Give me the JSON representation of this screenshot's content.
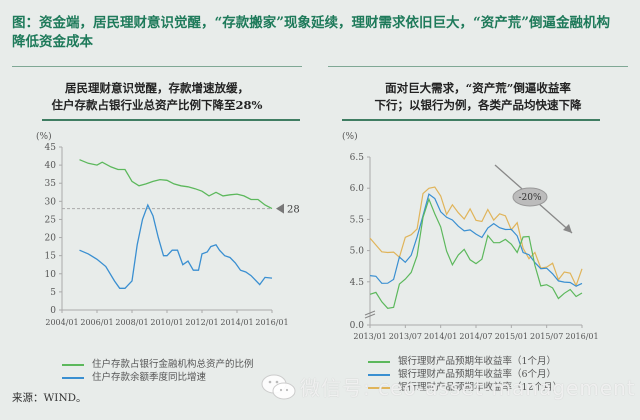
{
  "figure_title": "图：资金端，居民理财意识觉醒，“存款搬家”现象延续，理财需求依旧巨大，“资产荒”倒逼金融机构降低资金成本",
  "source": "来源：WIND。",
  "watermark": "微信号: ceo-asset-management",
  "colors": {
    "title": "#1e7a5a",
    "rule": "#3f7d62",
    "green": "#5cb85c",
    "blue": "#3a8fd1",
    "gold": "#e0b45a",
    "grey": "#888888"
  },
  "chart_data": [
    {
      "type": "line",
      "panel_title_line1": "居民理财意识觉醒，存款增速放缓，",
      "panel_title_line2": "住户存款占银行业总资产比例下降至28%",
      "ylabel": "(%)",
      "ylim": [
        0,
        45
      ],
      "yticks": [
        0,
        5,
        10,
        15,
        20,
        25,
        30,
        35,
        40,
        45
      ],
      "xticks": [
        "2004/01",
        "2006/01",
        "2008/01",
        "2010/01",
        "2012/01",
        "2014/01",
        "2016/01"
      ],
      "annotation": {
        "type": "reference-line",
        "value": 28,
        "label": "28"
      },
      "series": [
        {
          "name": "住户存款占银行金融机构总资产的比例",
          "color": "#5cb85c",
          "x": [
            2005.0,
            2005.5,
            2006.0,
            2006.3,
            2006.8,
            2007.2,
            2007.6,
            2008.0,
            2008.4,
            2008.8,
            2009.2,
            2009.6,
            2010.0,
            2010.4,
            2010.8,
            2011.2,
            2011.6,
            2012.0,
            2012.4,
            2012.8,
            2013.2,
            2013.6,
            2014.0,
            2014.4,
            2014.8,
            2015.2,
            2015.6,
            2016.0
          ],
          "values": [
            41.5,
            40.5,
            40.0,
            40.8,
            39.5,
            38.8,
            38.8,
            35.5,
            34.3,
            34.8,
            35.5,
            36.0,
            35.8,
            34.8,
            34.3,
            34.0,
            33.5,
            32.8,
            31.5,
            32.5,
            31.5,
            31.8,
            32.0,
            31.5,
            30.5,
            30.5,
            29.0,
            28.0
          ]
        },
        {
          "name": "住户存款余额季度同比增速",
          "color": "#3a8fd1",
          "x": [
            2005.0,
            2005.5,
            2006.0,
            2006.5,
            2007.0,
            2007.3,
            2007.6,
            2008.0,
            2008.3,
            2008.6,
            2008.9,
            2009.2,
            2009.5,
            2009.8,
            2010.0,
            2010.3,
            2010.6,
            2010.9,
            2011.2,
            2011.5,
            2011.8,
            2012.0,
            2012.3,
            2012.5,
            2012.8,
            2013.0,
            2013.3,
            2013.6,
            2013.9,
            2014.2,
            2014.5,
            2014.8,
            2015.0,
            2015.3,
            2015.6,
            2016.0
          ],
          "values": [
            16.5,
            15.5,
            14.0,
            12.0,
            8.0,
            6.0,
            6.0,
            8.0,
            18.0,
            25.0,
            29.0,
            26.0,
            20.0,
            15.0,
            15.0,
            16.5,
            16.5,
            12.5,
            13.5,
            11.0,
            11.0,
            15.5,
            16.0,
            17.5,
            18.0,
            16.5,
            15.0,
            14.5,
            13.0,
            11.0,
            10.5,
            9.5,
            8.5,
            7.0,
            9.0,
            8.8
          ]
        }
      ],
      "legend_position": "bottom"
    },
    {
      "type": "line",
      "panel_title_line1": "面对巨大需求，“资产荒”倒逼收益率",
      "panel_title_line2": "下行；以银行为例，各类产品均快速下降",
      "ylabel": "(%)",
      "ylim": [
        0.0,
        6.5
      ],
      "yticks": [
        0.0,
        4.5,
        5.0,
        5.5,
        6.0,
        6.5
      ],
      "axis_break": true,
      "xticks": [
        "2013/01",
        "2013/07",
        "2014/01",
        "2014/07",
        "2015/01",
        "2015/07",
        "2016/01"
      ],
      "annotation": {
        "type": "arrow",
        "label": "-20%"
      },
      "series": [
        {
          "name": "银行理财产品预期年收益率（1个月）",
          "color": "#5cb85c",
          "x": [
            0,
            0.5,
            1,
            1.5,
            2,
            2.5,
            3,
            3.5,
            4,
            4.5,
            5,
            5.5,
            6,
            6.5,
            7,
            7.5,
            8,
            8.5,
            9,
            9.5,
            10,
            10.5,
            11,
            11.5,
            12,
            12.5,
            13,
            13.5,
            14,
            14.5,
            15,
            15.5,
            16,
            16.5,
            17,
            17.5,
            18
          ],
          "values": [
            4.3,
            4.25,
            4.2,
            4.15,
            4.05,
            4.4,
            4.6,
            4.7,
            4.85,
            5.5,
            5.9,
            5.6,
            5.3,
            5.0,
            4.85,
            4.9,
            4.95,
            4.9,
            4.85,
            4.8,
            5.2,
            5.2,
            5.15,
            5.1,
            5.1,
            5.05,
            5.2,
            5.15,
            4.8,
            4.5,
            4.4,
            4.35,
            4.3,
            4.35,
            4.3,
            4.25,
            4.4
          ]
        },
        {
          "name": "银行理财产品预期年收益率（6个月）",
          "color": "#3a8fd1",
          "x": [
            0,
            0.5,
            1,
            1.5,
            2,
            2.5,
            3,
            3.5,
            4,
            4.5,
            5,
            5.5,
            6,
            6.5,
            7,
            7.5,
            8,
            8.5,
            9,
            9.5,
            10,
            10.5,
            11,
            11.5,
            12,
            12.5,
            13,
            13.5,
            14,
            14.5,
            15,
            15.5,
            16,
            16.5,
            17,
            17.5,
            18
          ],
          "values": [
            4.6,
            4.55,
            4.5,
            4.5,
            4.5,
            4.9,
            4.85,
            4.9,
            5.2,
            5.6,
            5.9,
            5.8,
            5.65,
            5.55,
            5.45,
            5.4,
            5.35,
            5.3,
            5.25,
            5.25,
            5.35,
            5.4,
            5.4,
            5.35,
            5.3,
            5.25,
            5.0,
            4.9,
            4.8,
            4.75,
            4.7,
            4.6,
            4.55,
            4.5,
            4.45,
            4.45,
            4.5
          ]
        },
        {
          "name": "银行理财产品预期年收益率（12个月）",
          "color": "#e0b45a",
          "x": [
            0,
            0.5,
            1,
            1.5,
            2,
            2.5,
            3,
            3.5,
            4,
            4.5,
            5,
            5.5,
            6,
            6.5,
            7,
            7.5,
            8,
            8.5,
            9,
            9.5,
            10,
            10.5,
            11,
            11.5,
            12,
            12.5,
            13,
            13.5,
            14,
            14.5,
            15,
            15.5,
            16,
            16.5,
            17,
            17.5,
            18
          ],
          "values": [
            5.2,
            5.0,
            5.1,
            4.9,
            4.95,
            5.0,
            5.1,
            5.3,
            5.4,
            5.8,
            6.1,
            6.0,
            5.8,
            5.7,
            5.65,
            5.6,
            5.6,
            5.55,
            5.55,
            5.5,
            5.55,
            5.6,
            5.55,
            5.5,
            5.45,
            5.35,
            5.05,
            4.95,
            4.85,
            4.8,
            4.75,
            4.7,
            4.65,
            4.6,
            4.6,
            4.55,
            4.6
          ]
        }
      ],
      "legend_position": "bottom"
    }
  ]
}
